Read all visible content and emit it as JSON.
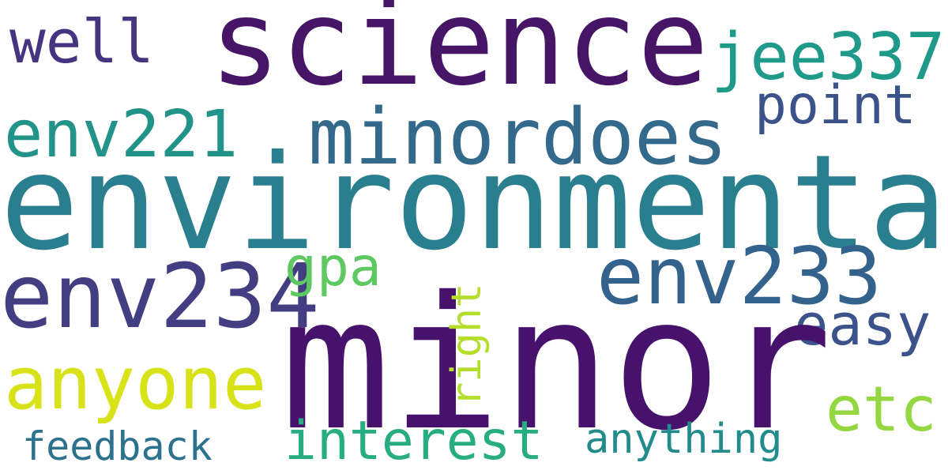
{
  "words": {
    "environmental": {
      "text": "environmental",
      "color": "#2a7f8e"
    },
    "minor": {
      "text": "minor",
      "color": "#47126b"
    },
    "science": {
      "text": "science",
      "color": "#471566"
    },
    "minordoes": {
      "text": "minordoes",
      "color": "#336a8c"
    },
    "env234": {
      "text": "env234",
      "color": "#433d82"
    },
    "env233": {
      "text": "env233",
      "color": "#33628d"
    },
    "env221": {
      "text": "env221",
      "color": "#229388"
    },
    "jee337": {
      "text": "jee337",
      "color": "#1f9a8a"
    },
    "well": {
      "text": "well",
      "color": "#453581"
    },
    "point": {
      "text": "point",
      "color": "#3b528b"
    },
    "gpa": {
      "text": "gpa",
      "color": "#5ec962"
    },
    "easy": {
      "text": "easy",
      "color": "#3b528b"
    },
    "anyone": {
      "text": "anyone",
      "color": "#d8e219"
    },
    "etc": {
      "text": "etc",
      "color": "#93d741"
    },
    "interest": {
      "text": "interest",
      "color": "#27ad81"
    },
    "anything": {
      "text": "anything",
      "color": "#228c8d"
    },
    "feedback": {
      "text": "feedback",
      "color": "#2c718e"
    },
    "right": {
      "text": "right",
      "color": "#b5de2b"
    }
  }
}
